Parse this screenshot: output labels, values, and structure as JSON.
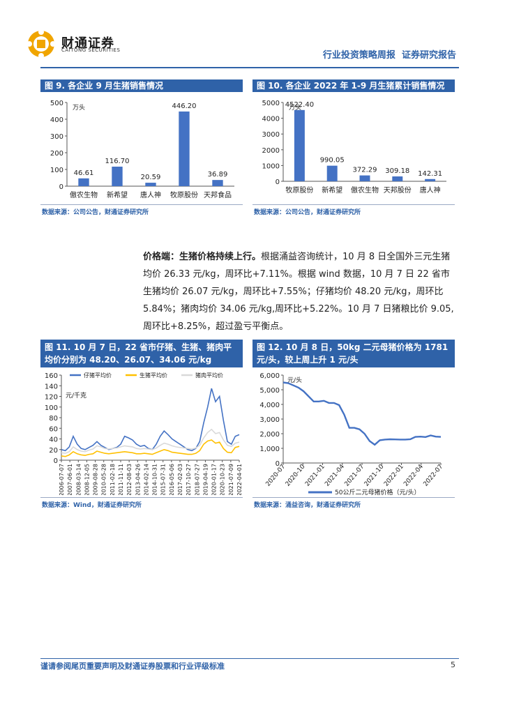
{
  "header": {
    "company_cn": "财通证券",
    "company_en": "CAITONG SECURITIES",
    "report_type": "行业投资策略周报",
    "report_suffix": "证券研究报告"
  },
  "figures": {
    "fig9": {
      "title": "图 9. 各企业 9 月生猪销售情况",
      "source": "数据来源：公司公告，财通证券研究所"
    },
    "fig10": {
      "title": "图 10. 各企业 2022 年 1-9 月生猪累计销售情况",
      "source": "数据来源：公司公告，财通证券研究所"
    },
    "fig11": {
      "title_l1": "图 11. 10 月 7 日，22 省市仔猪、生猪、猪肉平",
      "title_l2": "均价分别为 48.20、26.07、34.06 元/kg",
      "source": "数据来源：Wind，财通证券研究所"
    },
    "fig12": {
      "title_l1": "图 12. 10 月 8 日，50kg 二元母猪价格为 1781",
      "title_l2": "元/头，较上周上升 1 元/头",
      "source": "数据来源：涌益咨询，财通证券研究所"
    }
  },
  "paragraph": {
    "lead": "价格端：生猪价格持续上行。",
    "text": "根据涌益咨询统计，10 月 8 日全国外三元生猪均价 26.33 元/kg，周环比+7.11%。根据 wind 数据，10 月 7 日 22 省市生猪均价 26.07 元/kg，周环比+7.55%；仔猪均价 48.20 元/kg，周环比 5.84%；猪肉均价 34.06 元/kg,周环比+5.22%。10 月 7 日猪粮比价 9.05,周环比+8.25%，超过盈亏平衡点。"
  },
  "footer": {
    "disclaimer": "谨请参阅尾页重要声明及财通证券股票和行业评级标准",
    "page": "5"
  },
  "colors": {
    "accent": "#2f62a8",
    "bar": "#4472c4",
    "line_piglet": "#4472c4",
    "line_hog": "#ffc000",
    "line_pork": "#d9d9d9"
  },
  "chart_data": [
    {
      "id": "fig9",
      "type": "bar",
      "unit": "万头",
      "categories": [
        "傲农生物",
        "新希望",
        "唐人神",
        "牧原股份",
        "天邦食品"
      ],
      "values": [
        46.61,
        116.7,
        20.59,
        446.2,
        36.89
      ],
      "labels": [
        "46.61",
        "116.70",
        "20.59",
        "446.20",
        "36.89"
      ],
      "ylim": [
        0,
        500
      ],
      "yticks": [
        "0",
        "100",
        "200",
        "300",
        "400",
        "500"
      ]
    },
    {
      "id": "fig10",
      "type": "bar",
      "unit": "万头",
      "categories": [
        "牧原股份",
        "新希望",
        "傲农生物",
        "天邦股份",
        "唐人神"
      ],
      "values": [
        4522.4,
        990.05,
        372.29,
        309.18,
        142.31
      ],
      "labels": [
        "4522.40",
        "990.05",
        "372.29",
        "309.18",
        "142.31"
      ],
      "ylim": [
        0,
        5000
      ],
      "yticks": [
        "0",
        "1000",
        "2000",
        "3000",
        "4000",
        "5000"
      ]
    },
    {
      "id": "fig11",
      "type": "line",
      "unit": "元/千克",
      "ylim": [
        0,
        160
      ],
      "yticks": [
        "0",
        "20",
        "40",
        "60",
        "80",
        "100",
        "120",
        "140",
        "160"
      ],
      "xticks": [
        "2006-07-07",
        "2007-06-01",
        "2008-03-14",
        "2008-12-05",
        "2009-08-28",
        "2010-05-28",
        "2011-02-18",
        "2011-11-11",
        "2012-08-03",
        "2013-04-26",
        "2014-02-14",
        "2014-10-31",
        "2015-07-31",
        "2016-05-06",
        "2017-02-03",
        "2017-10-27",
        "2018-07-27",
        "2019-04-19",
        "2020-01-17",
        "2020-10-23",
        "2021-07-09",
        "2022-04-01"
      ],
      "series": [
        {
          "name": "仔猪平均价",
          "values": [
            20,
            18,
            25,
            45,
            30,
            22,
            20,
            24,
            28,
            35,
            28,
            24,
            20,
            22,
            24,
            30,
            45,
            42,
            38,
            30,
            26,
            28,
            22,
            20,
            30,
            45,
            55,
            48,
            40,
            35,
            30,
            25,
            20,
            18,
            22,
            35,
            70,
            100,
            135,
            110,
            120,
            75,
            35,
            30,
            45,
            48
          ]
        },
        {
          "name": "生猪平均价",
          "values": [
            8,
            7,
            10,
            16,
            12,
            10,
            9,
            11,
            12,
            17,
            15,
            13,
            12,
            13,
            14,
            15,
            16,
            15,
            14,
            12,
            12,
            13,
            12,
            11,
            14,
            17,
            20,
            18,
            15,
            14,
            13,
            12,
            11,
            11,
            13,
            18,
            30,
            36,
            38,
            32,
            34,
            22,
            15,
            14,
            24,
            26
          ]
        },
        {
          "name": "猪肉平均价",
          "values": [
            14,
            13,
            16,
            25,
            20,
            17,
            16,
            19,
            21,
            27,
            25,
            22,
            21,
            22,
            23,
            25,
            27,
            26,
            25,
            22,
            21,
            22,
            21,
            20,
            23,
            28,
            32,
            30,
            27,
            25,
            24,
            23,
            22,
            21,
            23,
            28,
            42,
            52,
            58,
            50,
            52,
            38,
            28,
            26,
            32,
            34
          ]
        }
      ]
    },
    {
      "id": "fig12",
      "type": "line",
      "unit": "元/头",
      "ylim": [
        0,
        6000
      ],
      "yticks": [
        "0",
        "1,000",
        "2,000",
        "3,000",
        "4,000",
        "5,000",
        "6,000"
      ],
      "xticks": [
        "2020-07",
        "2020-10",
        "2021-01",
        "2021-04",
        "2021-07",
        "2021-10",
        "2022-01",
        "2022-04",
        "2022-07"
      ],
      "series": [
        {
          "name": "50公斤二元母猪价格（元/头）",
          "values": [
            5500,
            5450,
            5300,
            5150,
            4900,
            4550,
            4200,
            4200,
            4250,
            4100,
            4100,
            3950,
            3300,
            2400,
            2400,
            2300,
            2000,
            1500,
            1250,
            1550,
            1600,
            1620,
            1610,
            1600,
            1600,
            1620,
            1780,
            1800,
            1770,
            1880,
            1800,
            1781
          ]
        }
      ]
    }
  ]
}
